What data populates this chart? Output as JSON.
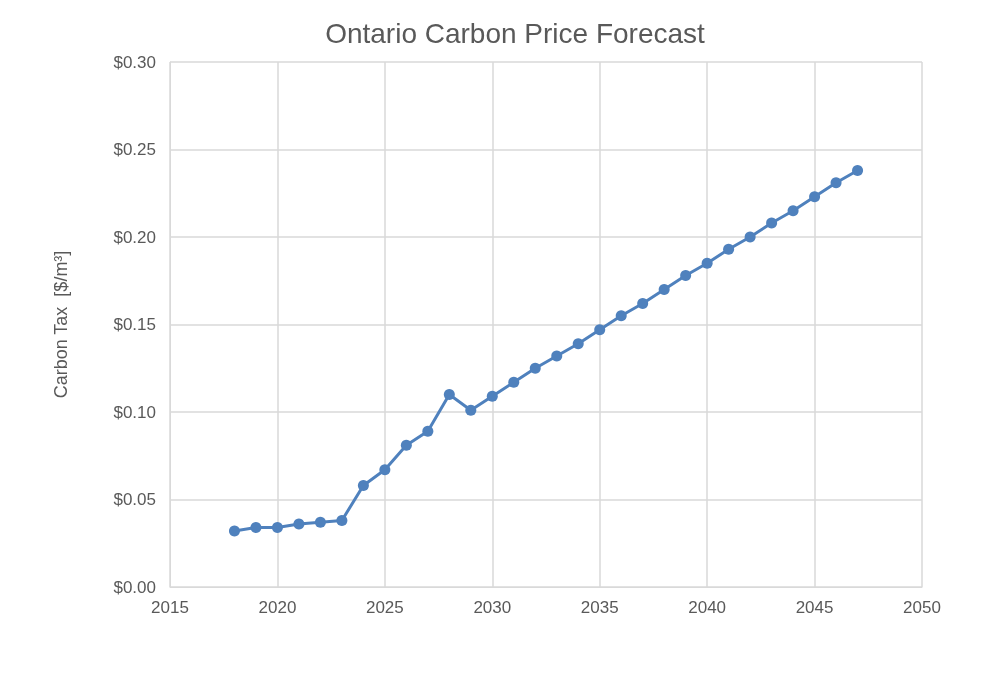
{
  "chart_data": {
    "type": "line",
    "title": "Ontario Carbon Price Forecast",
    "ylabel": "Carbon Tax  [$/m³]",
    "x": [
      2018,
      2019,
      2020,
      2021,
      2022,
      2023,
      2024,
      2025,
      2026,
      2027,
      2028,
      2029,
      2030,
      2031,
      2032,
      2033,
      2034,
      2035,
      2036,
      2037,
      2038,
      2039,
      2040,
      2041,
      2042,
      2043,
      2044,
      2045,
      2046,
      2047
    ],
    "series": [
      {
        "color": "#4f81bd",
        "values": [
          0.032,
          0.034,
          0.034,
          0.036,
          0.037,
          0.038,
          0.058,
          0.067,
          0.081,
          0.089,
          0.11,
          0.101,
          0.109,
          0.117,
          0.125,
          0.132,
          0.139,
          0.147,
          0.155,
          0.162,
          0.17,
          0.178,
          0.185,
          0.193,
          0.2,
          0.208,
          0.215,
          0.223,
          0.231,
          0.238
        ]
      }
    ],
    "xlim": [
      2015,
      2050
    ],
    "xticks": [
      2015,
      2020,
      2025,
      2030,
      2035,
      2040,
      2045,
      2050
    ],
    "ylim": [
      0,
      0.3
    ],
    "yticks": [
      {
        "value": 0,
        "label": "$0.00"
      },
      {
        "value": 0.05,
        "label": "$0.05"
      },
      {
        "value": 0.1,
        "label": "$0.10"
      },
      {
        "value": 0.15,
        "label": "$0.15"
      },
      {
        "value": 0.2,
        "label": "$0.20"
      },
      {
        "value": 0.25,
        "label": "$0.25"
      },
      {
        "value": 0.3,
        "label": "$0.30"
      }
    ],
    "grid": true,
    "marker": "circle",
    "line_style": "solid"
  }
}
